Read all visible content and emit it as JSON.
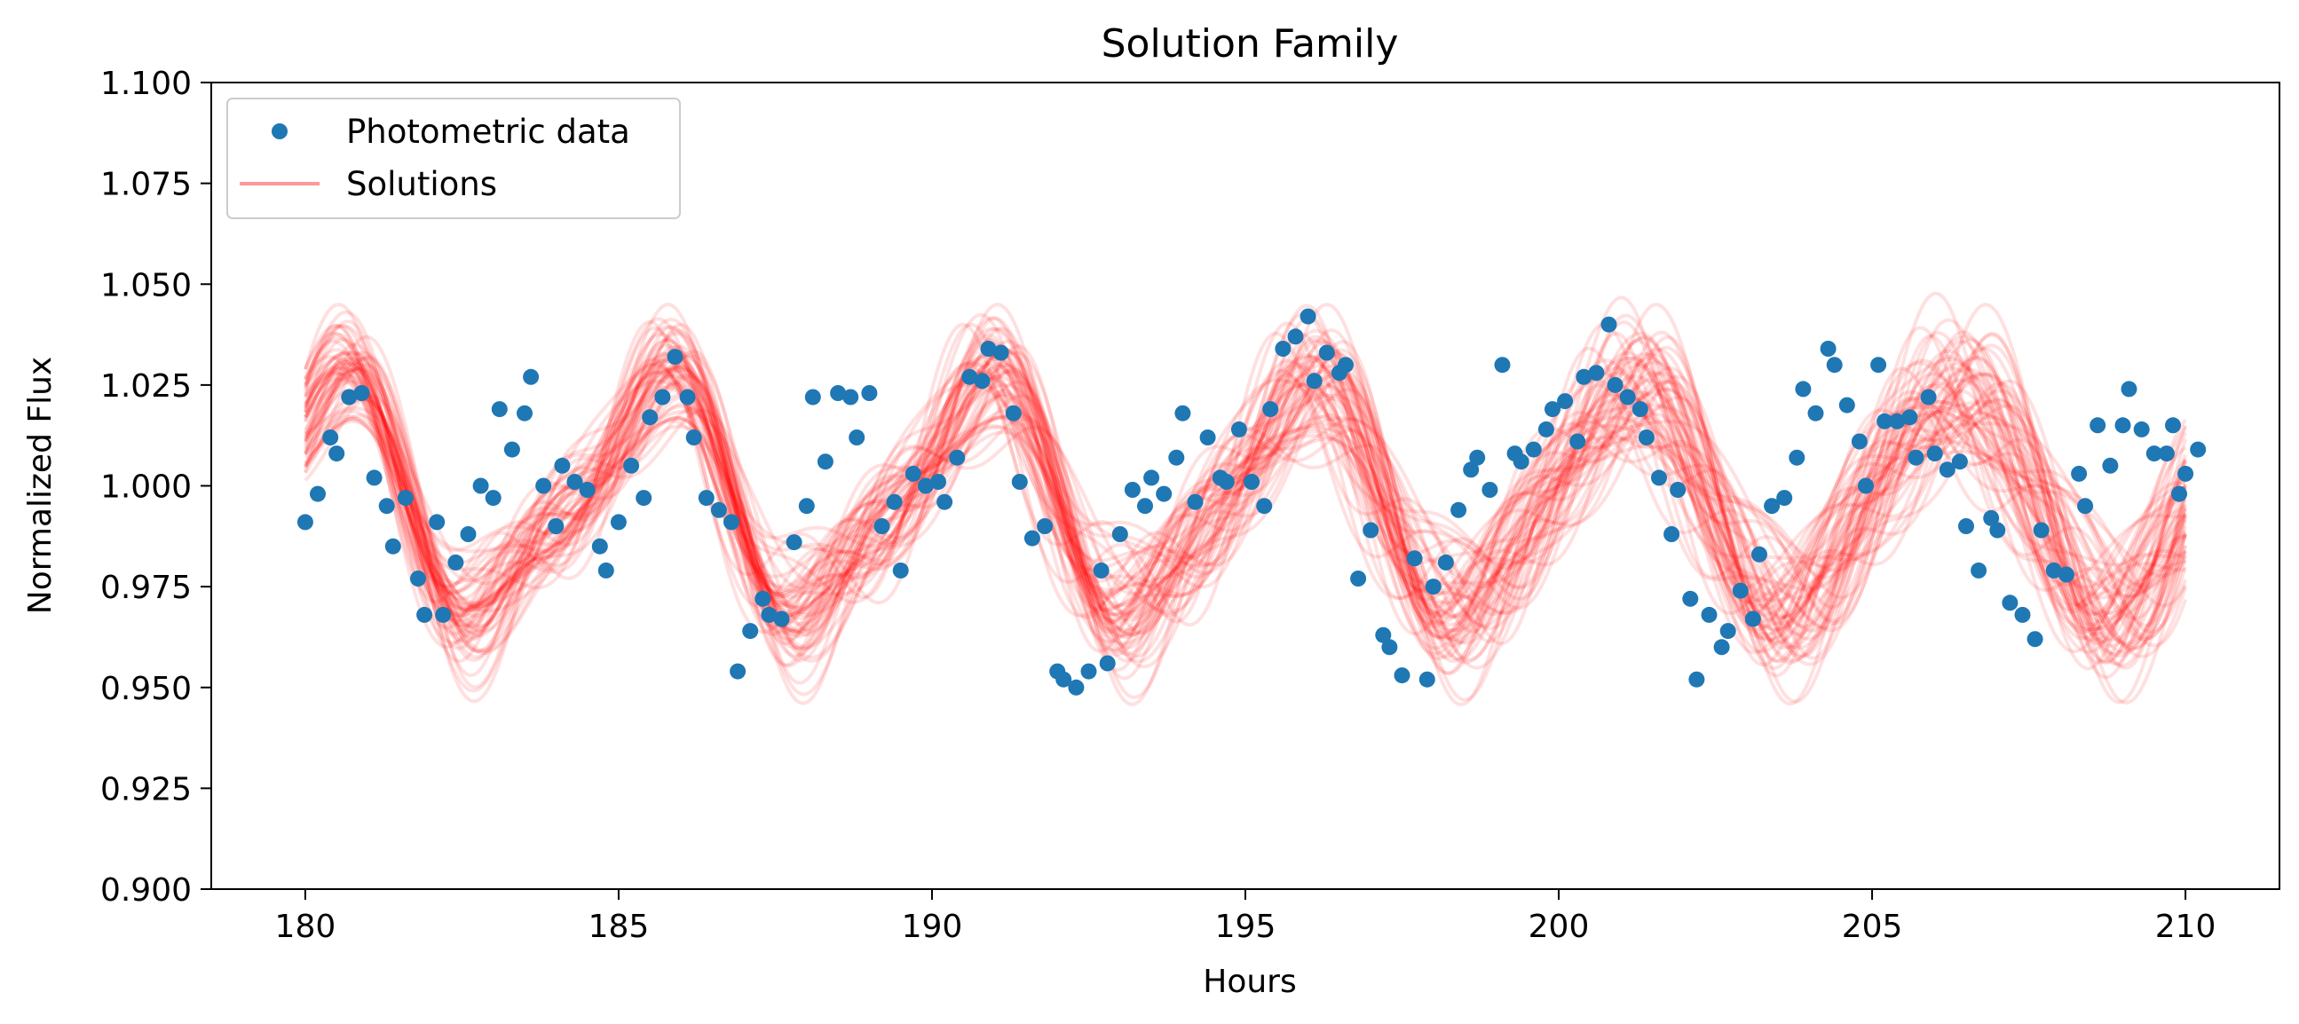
{
  "chart_data": {
    "type": "line",
    "title": "Solution Family",
    "xlabel": "Hours",
    "ylabel": "Normalized Flux",
    "xlim": [
      178.5,
      211.5
    ],
    "ylim": [
      0.9,
      1.1
    ],
    "x_ticks": [
      180,
      185,
      190,
      195,
      200,
      205,
      210
    ],
    "x_tick_labels": [
      "180",
      "185",
      "190",
      "195",
      "200",
      "205",
      "210"
    ],
    "y_ticks": [
      0.9,
      0.925,
      0.95,
      0.975,
      1.0,
      1.025,
      1.05,
      1.075,
      1.1
    ],
    "y_tick_labels": [
      "0.900",
      "0.925",
      "0.950",
      "0.975",
      "1.000",
      "1.025",
      "1.050",
      "1.075",
      "1.100"
    ],
    "grid": false,
    "legend_position": "top-left",
    "legend": [
      {
        "label": "Photometric data",
        "marker": "circle",
        "color": "#1f77b4"
      },
      {
        "label": "Solutions",
        "marker": "line",
        "color": "#ff0000",
        "alpha": 0.4
      }
    ],
    "series": [
      {
        "name": "Photometric data",
        "type": "scatter",
        "color": "#1f77b4",
        "points": [
          [
            180.0,
            0.991
          ],
          [
            180.2,
            0.998
          ],
          [
            180.4,
            1.012
          ],
          [
            180.5,
            1.008
          ],
          [
            180.7,
            1.022
          ],
          [
            180.9,
            1.023
          ],
          [
            181.1,
            1.002
          ],
          [
            181.3,
            0.995
          ],
          [
            181.4,
            0.985
          ],
          [
            181.6,
            0.997
          ],
          [
            181.8,
            0.977
          ],
          [
            181.9,
            0.968
          ],
          [
            182.1,
            0.991
          ],
          [
            182.2,
            0.968
          ],
          [
            182.4,
            0.981
          ],
          [
            182.6,
            0.988
          ],
          [
            182.8,
            1.0
          ],
          [
            183.0,
            0.997
          ],
          [
            183.1,
            1.019
          ],
          [
            183.3,
            1.009
          ],
          [
            183.5,
            1.018
          ],
          [
            183.6,
            1.027
          ],
          [
            183.8,
            1.0
          ],
          [
            184.0,
            0.99
          ],
          [
            184.1,
            1.005
          ],
          [
            184.3,
            1.001
          ],
          [
            184.5,
            0.999
          ],
          [
            184.7,
            0.985
          ],
          [
            184.8,
            0.979
          ],
          [
            185.0,
            0.991
          ],
          [
            185.2,
            1.005
          ],
          [
            185.4,
            0.997
          ],
          [
            185.5,
            1.017
          ],
          [
            185.7,
            1.022
          ],
          [
            185.9,
            1.032
          ],
          [
            186.1,
            1.022
          ],
          [
            186.2,
            1.012
          ],
          [
            186.4,
            0.997
          ],
          [
            186.6,
            0.994
          ],
          [
            186.8,
            0.991
          ],
          [
            186.9,
            0.954
          ],
          [
            187.1,
            0.964
          ],
          [
            187.3,
            0.972
          ],
          [
            187.4,
            0.968
          ],
          [
            187.6,
            0.967
          ],
          [
            187.8,
            0.986
          ],
          [
            188.0,
            0.995
          ],
          [
            188.1,
            1.022
          ],
          [
            188.3,
            1.006
          ],
          [
            188.5,
            1.023
          ],
          [
            188.7,
            1.022
          ],
          [
            188.8,
            1.012
          ],
          [
            189.0,
            1.023
          ],
          [
            189.2,
            0.99
          ],
          [
            189.4,
            0.996
          ],
          [
            189.5,
            0.979
          ],
          [
            189.7,
            1.003
          ],
          [
            189.9,
            1.0
          ],
          [
            190.1,
            1.001
          ],
          [
            190.2,
            0.996
          ],
          [
            190.4,
            1.007
          ],
          [
            190.6,
            1.027
          ],
          [
            190.8,
            1.026
          ],
          [
            190.9,
            1.034
          ],
          [
            191.1,
            1.033
          ],
          [
            191.3,
            1.018
          ],
          [
            191.4,
            1.001
          ],
          [
            191.6,
            0.987
          ],
          [
            191.8,
            0.99
          ],
          [
            192.0,
            0.954
          ],
          [
            192.1,
            0.952
          ],
          [
            192.3,
            0.95
          ],
          [
            192.5,
            0.954
          ],
          [
            192.7,
            0.979
          ],
          [
            192.8,
            0.956
          ],
          [
            193.0,
            0.988
          ],
          [
            193.2,
            0.999
          ],
          [
            193.4,
            0.995
          ],
          [
            193.5,
            1.002
          ],
          [
            193.7,
            0.998
          ],
          [
            193.9,
            1.007
          ],
          [
            194.0,
            1.018
          ],
          [
            194.2,
            0.996
          ],
          [
            194.4,
            1.012
          ],
          [
            194.6,
            1.002
          ],
          [
            194.7,
            1.001
          ],
          [
            194.9,
            1.014
          ],
          [
            195.1,
            1.001
          ],
          [
            195.3,
            0.995
          ],
          [
            195.4,
            1.019
          ],
          [
            195.6,
            1.034
          ],
          [
            195.8,
            1.037
          ],
          [
            196.0,
            1.042
          ],
          [
            196.1,
            1.026
          ],
          [
            196.3,
            1.033
          ],
          [
            196.5,
            1.028
          ],
          [
            196.6,
            1.03
          ],
          [
            196.8,
            0.977
          ],
          [
            197.0,
            0.989
          ],
          [
            197.2,
            0.963
          ],
          [
            197.3,
            0.96
          ],
          [
            197.5,
            0.953
          ],
          [
            197.7,
            0.982
          ],
          [
            197.9,
            0.952
          ],
          [
            198.0,
            0.975
          ],
          [
            198.2,
            0.981
          ],
          [
            198.4,
            0.994
          ],
          [
            198.6,
            1.004
          ],
          [
            198.7,
            1.007
          ],
          [
            198.9,
            0.999
          ],
          [
            199.1,
            1.03
          ],
          [
            199.3,
            1.008
          ],
          [
            199.4,
            1.006
          ],
          [
            199.6,
            1.009
          ],
          [
            199.8,
            1.014
          ],
          [
            199.9,
            1.019
          ],
          [
            200.1,
            1.021
          ],
          [
            200.3,
            1.011
          ],
          [
            200.4,
            1.027
          ],
          [
            200.6,
            1.028
          ],
          [
            200.8,
            1.04
          ],
          [
            200.9,
            1.025
          ],
          [
            201.1,
            1.022
          ],
          [
            201.3,
            1.019
          ],
          [
            201.4,
            1.012
          ],
          [
            201.6,
            1.002
          ],
          [
            201.8,
            0.988
          ],
          [
            201.9,
            0.999
          ],
          [
            202.1,
            0.972
          ],
          [
            202.2,
            0.952
          ],
          [
            202.4,
            0.968
          ],
          [
            202.6,
            0.96
          ],
          [
            202.7,
            0.964
          ],
          [
            202.9,
            0.974
          ],
          [
            203.1,
            0.967
          ],
          [
            203.2,
            0.983
          ],
          [
            203.4,
            0.995
          ],
          [
            203.6,
            0.997
          ],
          [
            203.8,
            1.007
          ],
          [
            203.9,
            1.024
          ],
          [
            204.1,
            1.018
          ],
          [
            204.3,
            1.034
          ],
          [
            204.4,
            1.03
          ],
          [
            204.6,
            1.02
          ],
          [
            204.8,
            1.011
          ],
          [
            204.9,
            1.0
          ],
          [
            205.1,
            1.03
          ],
          [
            205.2,
            1.016
          ],
          [
            205.4,
            1.016
          ],
          [
            205.6,
            1.017
          ],
          [
            205.7,
            1.007
          ],
          [
            205.9,
            1.022
          ],
          [
            206.0,
            1.008
          ],
          [
            206.2,
            1.004
          ],
          [
            206.4,
            1.006
          ],
          [
            206.5,
            0.99
          ],
          [
            206.7,
            0.979
          ],
          [
            206.9,
            0.992
          ],
          [
            207.0,
            0.989
          ],
          [
            207.2,
            0.971
          ],
          [
            207.4,
            0.968
          ],
          [
            207.6,
            0.962
          ],
          [
            207.7,
            0.989
          ],
          [
            207.9,
            0.979
          ],
          [
            208.1,
            0.978
          ],
          [
            208.3,
            1.003
          ],
          [
            208.4,
            0.995
          ],
          [
            208.6,
            1.015
          ],
          [
            208.8,
            1.005
          ],
          [
            209.0,
            1.015
          ],
          [
            209.1,
            1.024
          ],
          [
            209.3,
            1.014
          ],
          [
            209.5,
            1.008
          ],
          [
            209.7,
            1.008
          ],
          [
            209.8,
            1.015
          ],
          [
            209.9,
            0.998
          ],
          [
            210.0,
            1.003
          ],
          [
            210.2,
            1.009
          ]
        ]
      },
      {
        "name": "Solutions",
        "type": "line",
        "color": "#ff0000",
        "alpha": 0.12,
        "x_range": [
          180.0,
          210.0
        ],
        "description_model": {
          "mean": 0.996,
          "count": 60,
          "components": [
            {
              "amplitude": 0.027,
              "period_hours": 5.18,
              "phase_hours": 180.4
            },
            {
              "amplitude": 0.01,
              "period_hours": 2.59,
              "phase_hours": 180.9
            }
          ]
        }
      }
    ]
  }
}
